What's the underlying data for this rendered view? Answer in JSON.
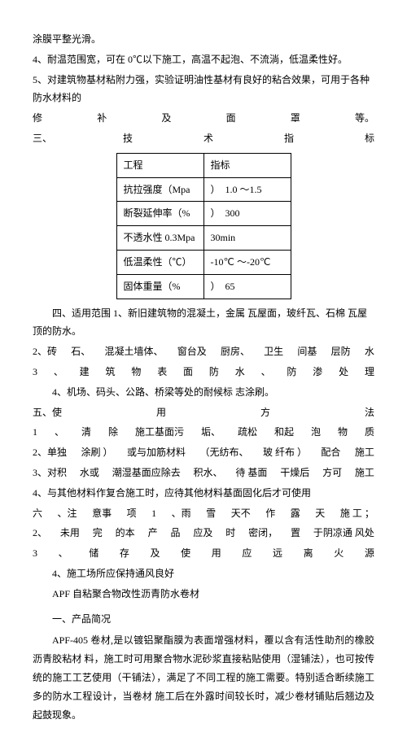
{
  "p1": "涂膜平整光滑。",
  "p2": "4、耐温范围宽，可在 0℃以下施工，高温不起泡、不流淌，低温柔性好。",
  "p3": "5、对建筑物基材粘附力强，实验证明油性基材有良好的粘合效果，可用于各种防水材料的",
  "row_xiu": [
    "修",
    "补",
    "及",
    "面",
    "罩",
    "等。"
  ],
  "row_san": [
    "三、",
    "技",
    "术",
    "指",
    "标"
  ],
  "table": {
    "h1": "工程",
    "h2": "指标",
    "r1c1": "抗拉强度（Mpa",
    "r1c2": "）　1.0 ～1.5",
    "r2c1": "断裂延伸率（%",
    "r2c2": "）　300",
    "r3c1": "不透水性 0.3Mpa",
    "r3c2": "30min",
    "r4c1": "低温柔性（℃）",
    "r4c2": " -10℃ ～-20℃",
    "r5c1": "固体重量（%",
    "r5c2": "）　65"
  },
  "p4": "四、适用范围 1、新旧建筑物的混凝土，金属 瓦屋面，玻纤瓦、石棉 瓦屋顶的防水。",
  "row_2": [
    "2、砖",
    "石、",
    "混凝土墙体、",
    "窗台及",
    "厨房、",
    "卫生",
    "间基",
    "层防",
    "水"
  ],
  "row_3": [
    "3",
    "、",
    "建",
    "筑",
    "物",
    "表",
    "面",
    "防",
    "水",
    "、",
    "防",
    "渗",
    "处",
    "理"
  ],
  "p5": "4、机场、码头、公路、桥梁等处的耐候标 志涂刷。",
  "row_wu": [
    "五、使",
    "用",
    "方",
    "法"
  ],
  "row_u1": [
    "1",
    "、",
    "清",
    "除",
    "施工基面污",
    "垢、",
    "疏松",
    "和起",
    "泡",
    "物",
    "质"
  ],
  "row_u2": [
    "2、单独",
    "涂刷 ）",
    "或与加筋材料",
    "（无纺布、",
    "玻 纤布 ）",
    "配合",
    "施工"
  ],
  "row_u3": [
    "3、对积",
    "水或",
    "潮湿基面应除去",
    "积水、",
    "待 基面",
    "干燥后",
    "方可",
    "施工"
  ],
  "p6": "4、与其他材料作复合施工时，应待其他材料基面固化后才可使用",
  "row_liu": [
    "六",
    "、注",
    "意事",
    "项",
    "1",
    "、雨",
    "雪",
    "天不",
    "作",
    "露",
    "天",
    "施 工 ；"
  ],
  "row_n2": [
    "2、",
    "未用",
    "完",
    "的本",
    "产",
    "品",
    "应及",
    "时",
    "密闭，",
    "置",
    "于阴凉通 风处"
  ],
  "row_n3": [
    "3",
    "、",
    "储",
    "存",
    "及",
    "使",
    "用",
    "应",
    "远",
    "离",
    "火",
    "源"
  ],
  "p7": "4、施工场所应保持通风良好",
  "p8": "APF 自粘聚合物改性沥青防水卷材",
  "p9": "一、产品简况",
  "p10": "APF-405 卷材,是以镀铝聚酯膜为表面增强材料，覆以含有活性助剂的橡胶沥青胶粘材 料，施工时可用聚合物水泥砂浆直接粘贴使用（湿铺法），也可按传统的施工工艺使用（干铺法），满足了不同工程的施工需要。特别适合断续施工多的防水工程设计，当卷材 施工后在外露时间较长时，减少卷材铺贴后翘边及起鼓现象。"
}
